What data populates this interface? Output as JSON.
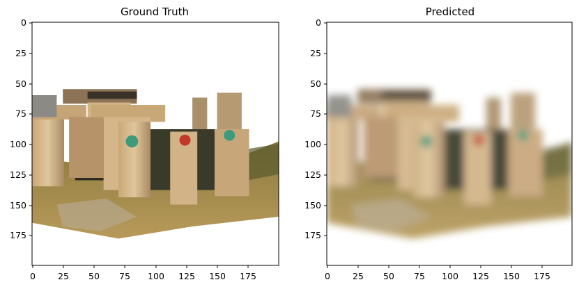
{
  "figure": {
    "panels": [
      {
        "title": "Ground Truth",
        "xticks": [
          "0",
          "25",
          "50",
          "75",
          "100",
          "125",
          "150",
          "175"
        ],
        "yticks": [
          "0",
          "25",
          "50",
          "75",
          "100",
          "125",
          "150",
          "175"
        ]
      },
      {
        "title": "Predicted",
        "xticks": [
          "0",
          "25",
          "50",
          "75",
          "100",
          "125",
          "150",
          "175"
        ],
        "yticks": [
          "0",
          "25",
          "50",
          "75",
          "100",
          "125",
          "150",
          "175"
        ]
      }
    ]
  },
  "colors": {
    "stone_light": "#d8bc8c",
    "stone_mid": "#b8956a",
    "stone_dark": "#6e5a44",
    "shadow": "#2e2a22",
    "grass": "#a88c4a",
    "grass_dark": "#6b6a3a",
    "mark_green": "#3f9a7a",
    "mark_red": "#c0392b"
  }
}
